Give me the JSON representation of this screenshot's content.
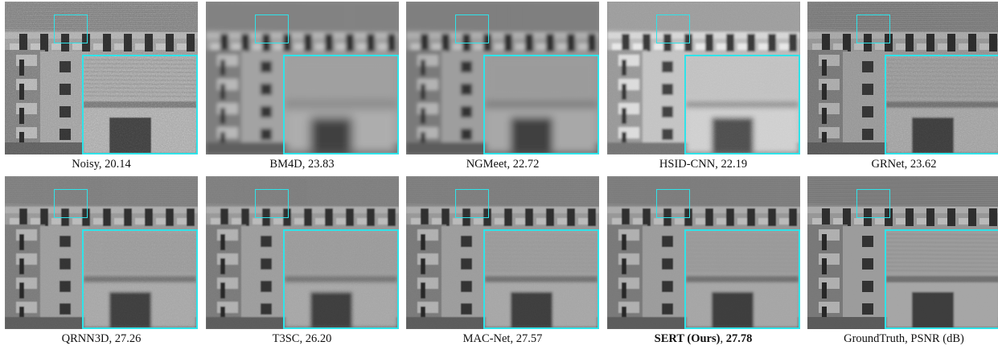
{
  "panels": [
    {
      "method": "Noisy",
      "psnr": "20.14",
      "bold": false,
      "noise": 0.9,
      "blur": 0,
      "bright": 1.0
    },
    {
      "method": "BM4D",
      "psnr": "23.83",
      "bold": false,
      "noise": 0.0,
      "blur": 2.5,
      "bright": 1.05
    },
    {
      "method": "NGMeet",
      "psnr": "22.72",
      "bold": false,
      "noise": 0.0,
      "blur": 2.0,
      "bright": 1.02
    },
    {
      "method": "HSID-CNN",
      "psnr": "22.19",
      "bold": false,
      "noise": 0.35,
      "blur": 1.2,
      "bright": 1.25
    },
    {
      "method": "GRNet",
      "psnr": "23.62",
      "bold": false,
      "noise": 0.6,
      "blur": 0.3,
      "bright": 0.95
    },
    {
      "method": "QRNN3D",
      "psnr": "27.26",
      "bold": false,
      "noise": 0.35,
      "blur": 0.6,
      "bright": 1.0
    },
    {
      "method": "T3SC",
      "psnr": "26.20",
      "bold": false,
      "noise": 0.25,
      "blur": 0.9,
      "bright": 1.0
    },
    {
      "method": "MAC-Net",
      "psnr": "27.57",
      "bold": false,
      "noise": 0.2,
      "blur": 0.5,
      "bright": 1.0
    },
    {
      "method": "SERT (Ours)",
      "psnr": "27.78",
      "bold": true,
      "noise": 0.12,
      "blur": 0.5,
      "bright": 1.0
    },
    {
      "method": "GroundTruth",
      "psnr": "PSNR (dB)",
      "bold": false,
      "noise": 0.05,
      "blur": 0.3,
      "bright": 1.0
    }
  ]
}
